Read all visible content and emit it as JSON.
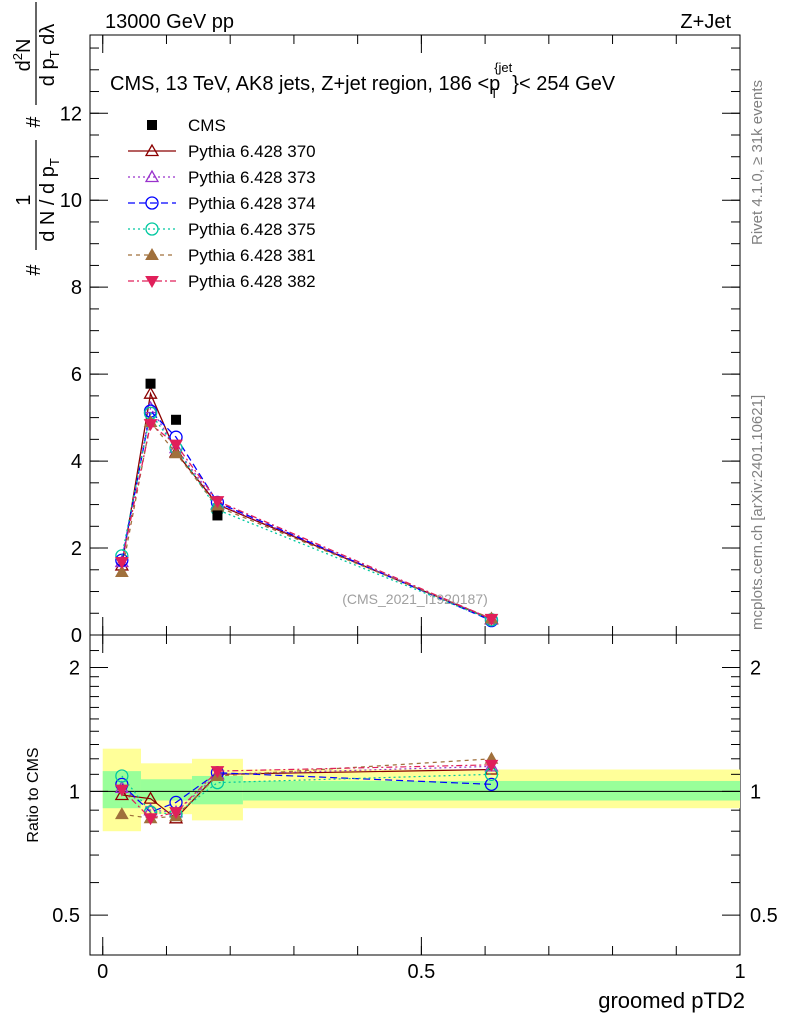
{
  "header": {
    "left": "13000 GeV pp",
    "right": "Z+Jet"
  },
  "side_labels": {
    "rivet": "Rivet 4.1.0, ≥ 31k events",
    "mcplots": "mcplots.cern.ch [arXiv:2401.10621]"
  },
  "watermark": "(CMS_2021_I1920187)",
  "chart_data": {
    "type": "line",
    "title": "CMS, 13 TeV, AK8 jets, Z+jet region, 186 <p_T^{jet}< 254 GeV",
    "title_parts": {
      "prefix": "CMS, 13 TeV, AK8 jets, Z+jet region, 186 <",
      "p": "p",
      "sub": "T",
      "sup": "{jet",
      "close": "}",
      "suffix": "< 254 GeV"
    },
    "xlabel": "groomed pTD2",
    "ylabel_main": "1/(dN/dp_T) d²N/dp_T dλ",
    "ylabel_ratio": "Ratio to CMS",
    "xlim": [
      -0.02,
      1.0
    ],
    "ylim_main": [
      0,
      13.8
    ],
    "ylim_ratio": [
      0.4,
      2.4
    ],
    "ratio_scale": "log",
    "x_ticks": [
      0,
      0.5,
      1
    ],
    "x_tick_labels": [
      "0",
      "0.5",
      "1"
    ],
    "y_ticks_main": [
      0,
      2,
      4,
      6,
      8,
      10,
      12
    ],
    "y_tick_labels_main": [
      "0",
      "2",
      "4",
      "6",
      "8",
      "10",
      "12"
    ],
    "y_ticks_ratio": [
      0.5,
      1,
      2
    ],
    "y_tick_labels_ratio": [
      "0.5",
      "1",
      "2"
    ],
    "x": [
      0.03,
      0.075,
      0.115,
      0.18,
      0.61
    ],
    "bin_edges": [
      0.0,
      0.06,
      0.14,
      0.22,
      1.0
    ],
    "band_bins": [
      [
        0.0,
        0.06
      ],
      [
        0.06,
        0.14
      ],
      [
        0.14,
        0.22
      ],
      [
        0.22,
        1.0
      ]
    ],
    "band_green": [
      [
        0.91,
        1.12
      ],
      [
        0.95,
        1.07
      ],
      [
        0.93,
        1.09
      ],
      [
        0.95,
        1.06
      ]
    ],
    "band_yellow": [
      [
        0.8,
        1.27
      ],
      [
        0.88,
        1.17
      ],
      [
        0.85,
        1.2
      ],
      [
        0.91,
        1.13
      ]
    ],
    "legend_position": "top-left",
    "data": {
      "name": "CMS",
      "x": [
        0.075,
        0.115,
        0.18
      ],
      "y": [
        5.78,
        4.95,
        2.75
      ],
      "color": "#000000"
    },
    "series": [
      {
        "name": "Pythia 6.428 370",
        "color": "#8b0000",
        "marker": "triangle-open",
        "dash": "",
        "values": [
          1.6,
          5.55,
          4.2,
          3.0,
          0.36
        ],
        "ratio": [
          0.98,
          0.96,
          0.86,
          1.1,
          1.13
        ]
      },
      {
        "name": "Pythia 6.428 373",
        "color": "#9932cc",
        "marker": "triangle-open",
        "dash": "2,3",
        "values": [
          1.68,
          5.22,
          4.3,
          3.02,
          0.37
        ],
        "ratio": [
          1.02,
          0.9,
          0.89,
          1.1,
          1.15
        ]
      },
      {
        "name": "Pythia 6.428 374",
        "color": "#0000ff",
        "marker": "circle-open",
        "dash": "7,4",
        "values": [
          1.72,
          5.15,
          4.55,
          3.05,
          0.33
        ],
        "ratio": [
          1.04,
          0.89,
          0.94,
          1.11,
          1.04
        ]
      },
      {
        "name": "Pythia 6.428 375",
        "color": "#00c8a0",
        "marker": "circle-open",
        "dash": "2,3",
        "values": [
          1.82,
          5.1,
          4.3,
          2.88,
          0.35
        ],
        "ratio": [
          1.09,
          0.89,
          0.88,
          1.05,
          1.1
        ]
      },
      {
        "name": "Pythia 6.428 381",
        "color": "#a0703c",
        "marker": "triangle-filled",
        "dash": "4,4",
        "values": [
          1.45,
          4.9,
          4.18,
          2.95,
          0.38
        ],
        "ratio": [
          0.88,
          0.86,
          0.87,
          1.09,
          1.2
        ]
      },
      {
        "name": "Pythia 6.428 382",
        "color": "#e0205a",
        "marker": "triangle-down-filled",
        "dash": "6,3,2,3",
        "values": [
          1.68,
          4.85,
          4.38,
          3.08,
          0.37
        ],
        "ratio": [
          1.01,
          0.86,
          0.89,
          1.12,
          1.16
        ]
      }
    ]
  }
}
